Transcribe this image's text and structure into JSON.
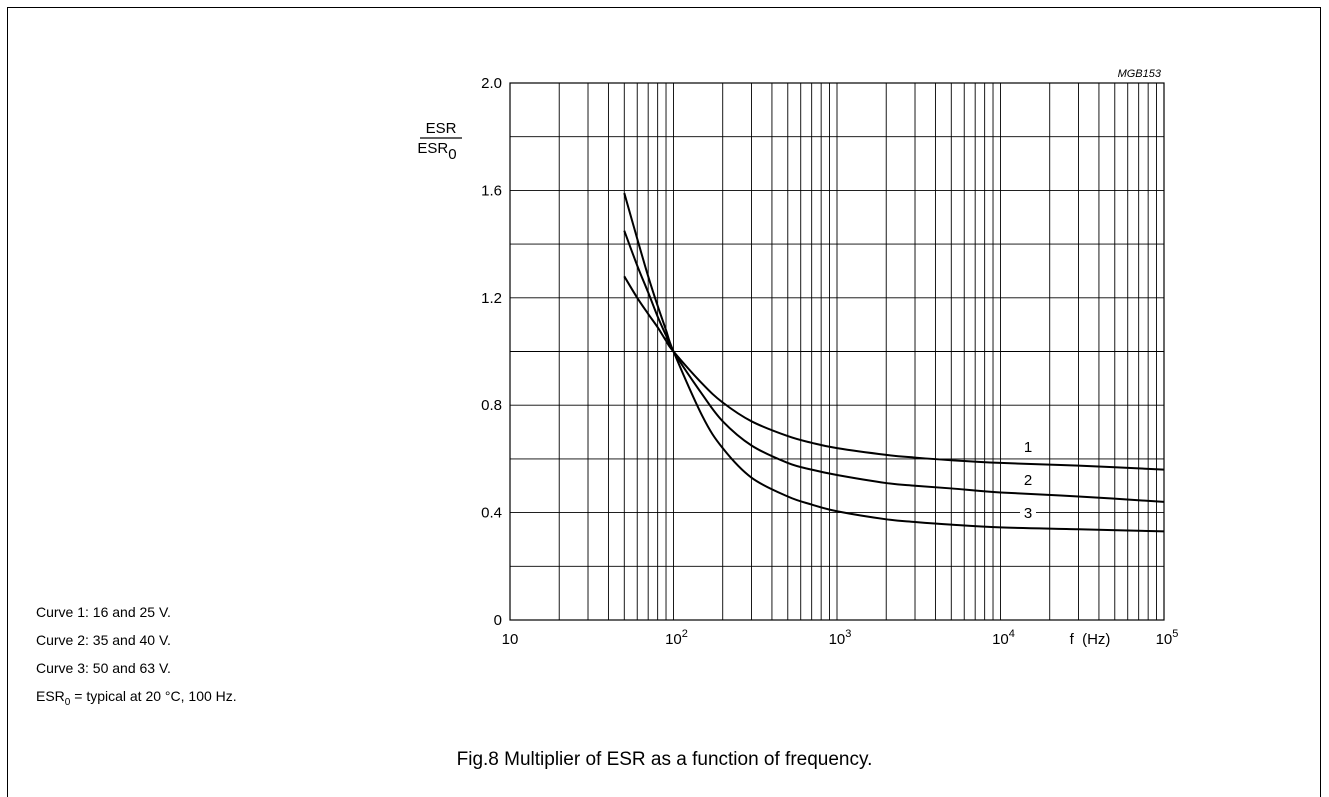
{
  "figure_code": "MGB153",
  "caption": "Fig.8  Multiplier of ESR as a function of frequency.",
  "notes": [
    "Curve 1: 16 and 25 V.",
    "Curve 2: 35 and 40 V.",
    "Curve 3: 50 and 63 V."
  ],
  "esr0_note": {
    "base": "ESR",
    "sub": "0",
    "rest": " = typical at 20 °C, 100 Hz."
  },
  "chart_data": {
    "type": "line",
    "title": "",
    "xlabel": "f  (Hz)",
    "ylabel": {
      "numerator": "ESR",
      "denominator_base": "ESR",
      "denominator_sub": "0"
    },
    "x_scale": "log",
    "xlim": [
      10,
      100000
    ],
    "ylim": [
      0,
      2.0
    ],
    "x_ticks": [
      {
        "value": 10,
        "base": "10",
        "exp": ""
      },
      {
        "value": 100,
        "base": "10",
        "exp": "2"
      },
      {
        "value": 1000,
        "base": "10",
        "exp": "3"
      },
      {
        "value": 10000,
        "base": "10",
        "exp": "4"
      },
      {
        "value": 100000,
        "base": "10",
        "exp": "5"
      }
    ],
    "y_ticks": [
      {
        "value": 0,
        "label": "0"
      },
      {
        "value": 0.4,
        "label": "0.4"
      },
      {
        "value": 0.8,
        "label": "0.8"
      },
      {
        "value": 1.2,
        "label": "1.2"
      },
      {
        "value": 1.6,
        "label": "1.6"
      },
      {
        "value": 2.0,
        "label": "2.0"
      }
    ],
    "y_grid_step": 0.2,
    "grid": true,
    "legend": "none",
    "series": [
      {
        "name": "1",
        "x": [
          50,
          60,
          70,
          80,
          90,
          100,
          150,
          200,
          300,
          500,
          700,
          1000,
          2000,
          3000,
          5000,
          10000,
          30000,
          100000
        ],
        "y": [
          1.28,
          1.2,
          1.14,
          1.09,
          1.04,
          1.0,
          0.88,
          0.81,
          0.74,
          0.685,
          0.66,
          0.64,
          0.615,
          0.605,
          0.595,
          0.585,
          0.575,
          0.56
        ]
      },
      {
        "name": "2",
        "x": [
          50,
          60,
          70,
          80,
          90,
          100,
          150,
          200,
          300,
          500,
          700,
          1000,
          2000,
          3000,
          5000,
          10000,
          30000,
          100000
        ],
        "y": [
          1.45,
          1.32,
          1.22,
          1.13,
          1.06,
          1.0,
          0.84,
          0.74,
          0.65,
          0.585,
          0.56,
          0.54,
          0.51,
          0.5,
          0.49,
          0.475,
          0.46,
          0.44
        ]
      },
      {
        "name": "3",
        "x": [
          50,
          60,
          70,
          80,
          90,
          100,
          150,
          200,
          300,
          500,
          700,
          1000,
          2000,
          3000,
          5000,
          10000,
          30000,
          100000
        ],
        "y": [
          1.59,
          1.42,
          1.28,
          1.17,
          1.08,
          1.0,
          0.76,
          0.64,
          0.53,
          0.46,
          0.43,
          0.405,
          0.375,
          0.365,
          0.355,
          0.345,
          0.338,
          0.33
        ]
      }
    ]
  }
}
